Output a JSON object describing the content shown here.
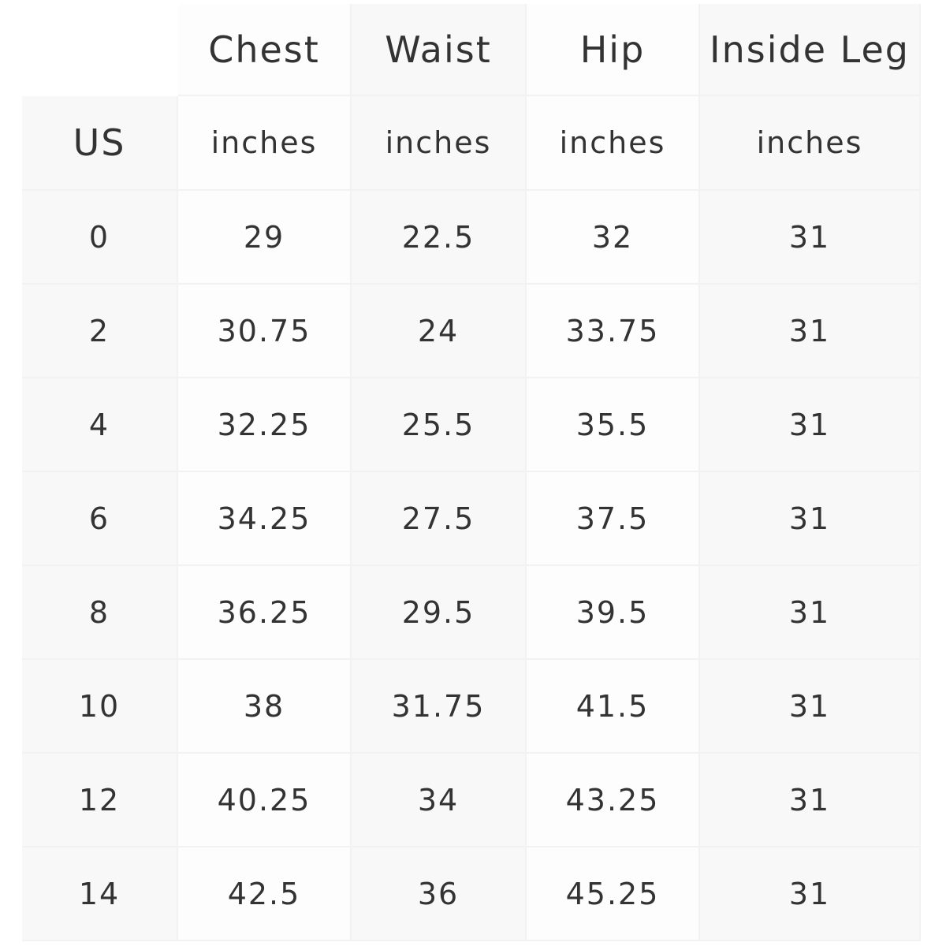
{
  "table": {
    "headers": [
      "",
      "Chest",
      "Waist",
      "Hip",
      "Inside Leg"
    ],
    "units_row": [
      "US",
      "inches",
      "inches",
      "inches",
      "inches"
    ],
    "rows": [
      [
        "0",
        "29",
        "22.5",
        "32",
        "31"
      ],
      [
        "2",
        "30.75",
        "24",
        "33.75",
        "31"
      ],
      [
        "4",
        "32.25",
        "25.5",
        "35.5",
        "31"
      ],
      [
        "6",
        "34.25",
        "27.5",
        "37.5",
        "31"
      ],
      [
        "8",
        "36.25",
        "29.5",
        "39.5",
        "31"
      ],
      [
        "10",
        "38",
        "31.75",
        "41.5",
        "31"
      ],
      [
        "12",
        "40.25",
        "34",
        "43.25",
        "31"
      ],
      [
        "14",
        "42.5",
        "36",
        "45.25",
        "31"
      ]
    ]
  }
}
